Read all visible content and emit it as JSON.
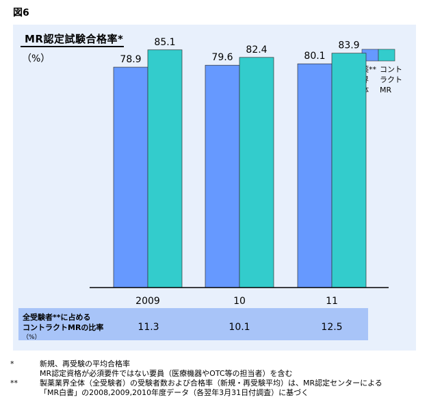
{
  "figure_label": "図6",
  "chart_data": {
    "type": "bar",
    "title": "MR認定試験合格率",
    "title_mark": "*",
    "unit": "（%）",
    "categories": [
      "2009",
      "10",
      "11"
    ],
    "ylim": [
      0,
      100
    ],
    "series": [
      {
        "name": "製薬業界全体",
        "name_mark": "**",
        "color": "#6699ff",
        "values": [
          78.9,
          79.6,
          80.1
        ]
      },
      {
        "name": "コントラクトMR",
        "color": "#33cccc",
        "values": [
          85.1,
          82.4,
          83.9
        ]
      }
    ],
    "legend_labels": {
      "series1_lines": [
        "製薬**",
        "業界",
        "全体"
      ],
      "series2_lines": [
        "コント",
        "ラクト",
        "MR"
      ]
    }
  },
  "ratio_row": {
    "label_line1": "全受験者**に占める",
    "label_line2": "コントラクトMRの比率",
    "label_unit": "（%）",
    "values": [
      "11.3",
      "10.1",
      "12.5"
    ]
  },
  "notes": [
    {
      "mark": "*",
      "text": "新規、再受験の平均合格率"
    },
    {
      "mark": "",
      "text": "MR認定資格が必須要件ではない要員（医療機器やOTC等の担当者）を含む"
    },
    {
      "mark": "**",
      "text": "製薬業界全体（全受験者）の受験者数および合格率（新規・再受験平均）は、MR認定センターによる"
    },
    {
      "mark": "",
      "text": "「MR白書」の2008,2009,2010年度データ（各翌年3月31日付調査）に基づく"
    }
  ]
}
